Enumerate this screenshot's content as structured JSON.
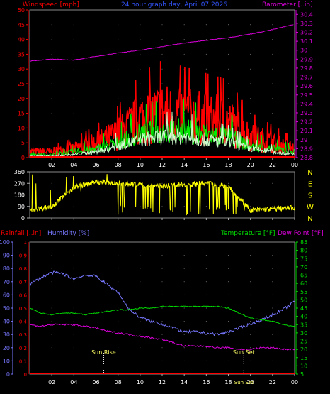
{
  "chart_data": [
    {
      "type": "line",
      "title": "24 hour graph day, April 07 2026",
      "left_label": "Windspeed [mph]",
      "right_label": "Barometer [..in]",
      "x_ticks": [
        "02",
        "04",
        "06",
        "08",
        "10",
        "12",
        "14",
        "16",
        "18",
        "20",
        "22",
        "00"
      ],
      "y_left_ticks": [
        "0",
        "5",
        "10",
        "15",
        "20",
        "25",
        "30",
        "35",
        "40",
        "45",
        "50"
      ],
      "y_left_range": [
        0,
        50
      ],
      "y_right_ticks": [
        "28.8",
        "28.9",
        "29",
        "29.1",
        "29.2",
        "29.3",
        "29.4",
        "29.5",
        "29.6",
        "29.7",
        "29.8",
        "29.9",
        "30",
        "30.1",
        "30.2",
        "30.3",
        "30.4"
      ],
      "y_right_range": [
        28.8,
        30.45
      ],
      "series": [
        {
          "color": "#dd00dd",
          "axis": "right",
          "x": [
            0,
            2,
            4,
            6,
            8,
            10,
            12,
            14,
            16,
            18,
            20,
            22,
            24
          ],
          "y": [
            29.88,
            29.9,
            29.89,
            29.93,
            29.97,
            30.0,
            30.04,
            30.08,
            30.11,
            30.14,
            30.18,
            30.23,
            30.29
          ]
        },
        {
          "color": "#ff0000",
          "axis": "left",
          "x": [
            0,
            2,
            4,
            6,
            8,
            10,
            12,
            14,
            16,
            18,
            20,
            22,
            24
          ],
          "y": [
            2,
            2,
            3,
            5,
            8,
            13,
            15,
            14,
            13,
            12,
            7,
            5,
            3
          ]
        },
        {
          "color": "#00ee00",
          "axis": "left",
          "x": [
            0,
            2,
            4,
            6,
            8,
            10,
            12,
            14,
            16,
            18,
            20,
            22,
            24
          ],
          "y": [
            1,
            1,
            2,
            3,
            5,
            8,
            9,
            9,
            8,
            7,
            4,
            3,
            2
          ]
        },
        {
          "color": "#ccffcc",
          "axis": "left",
          "x": [
            0,
            2,
            4,
            6,
            8,
            10,
            12,
            14,
            16,
            18,
            20,
            22,
            24
          ],
          "y": [
            0.5,
            0.5,
            1,
            2,
            4,
            6,
            7,
            7,
            6,
            5,
            3,
            2,
            1
          ]
        }
      ]
    },
    {
      "type": "line",
      "y_left_ticks": [
        "0",
        "90",
        "180",
        "270",
        "360"
      ],
      "y_left_range": [
        0,
        360
      ],
      "y_right_ticks": [
        "N",
        "W",
        "S",
        "E",
        "N"
      ],
      "series": [
        {
          "color": "#ffff00",
          "x": [
            0,
            2,
            4,
            6,
            8,
            10,
            12,
            14,
            16,
            18,
            20,
            22,
            24
          ],
          "y": [
            60,
            90,
            240,
            280,
            270,
            260,
            250,
            260,
            270,
            250,
            60,
            70,
            80
          ]
        }
      ]
    },
    {
      "type": "line",
      "labels": {
        "rainfall": "Rainfall [..in]",
        "humidity": "Humidity [%]",
        "temperature": "Temperature [°F]",
        "dew_point": "Dew Point [°F]"
      },
      "x_ticks": [
        "02",
        "04",
        "06",
        "08",
        "10",
        "12",
        "14",
        "16",
        "18",
        "20",
        "22",
        "00"
      ],
      "y_left_ticks": [
        "0",
        "10",
        "20",
        "30",
        "40",
        "50",
        "60",
        "70",
        "80",
        "90",
        "100"
      ],
      "y_rain_ticks": [
        "0",
        "0.1",
        "0.2",
        "0.3",
        "0.4",
        "0.5",
        "0.6",
        "0.7",
        "0.8",
        "0.9",
        "1"
      ],
      "y_right_ticks": [
        "5",
        "10",
        "15",
        "20",
        "25",
        "30",
        "35",
        "40",
        "45",
        "50",
        "55",
        "60",
        "65",
        "70",
        "75",
        "80",
        "85"
      ],
      "y_right_range": [
        5,
        85
      ],
      "annotations": [
        {
          "text": "Sun Rise",
          "hour": 6.7
        },
        {
          "text": "Sun Set",
          "hour": 19.4
        },
        {
          "text": "Sun Set",
          "hour": 19.4
        }
      ],
      "series": [
        {
          "name": "Humidity [%]",
          "color": "#7777ff",
          "axis": "left",
          "x": [
            0,
            1,
            2,
            3,
            4,
            5,
            6,
            7,
            8,
            9,
            10,
            11,
            12,
            13,
            14,
            15,
            16,
            17,
            18,
            19,
            20,
            21,
            22,
            23,
            24
          ],
          "y": [
            68,
            73,
            77,
            76,
            72,
            75,
            74,
            68,
            62,
            49,
            43,
            40,
            38,
            35,
            32,
            32,
            31,
            30,
            32,
            35,
            38,
            41,
            45,
            49,
            55
          ]
        },
        {
          "name": "Temperature [°F]",
          "color": "#00dd00",
          "axis": "right",
          "x": [
            0,
            1,
            2,
            3,
            4,
            5,
            6,
            7,
            8,
            9,
            10,
            11,
            12,
            13,
            14,
            15,
            16,
            17,
            18,
            19,
            20,
            21,
            22,
            23,
            24
          ],
          "y": [
            45,
            42,
            41,
            42,
            42,
            41,
            42,
            43,
            44,
            44,
            45,
            45,
            46,
            46,
            46,
            46,
            46,
            46,
            45,
            42,
            39,
            38,
            37,
            35,
            34
          ]
        },
        {
          "name": "Dew Point [°F]",
          "color": "#dd00dd",
          "axis": "right",
          "x": [
            0,
            1,
            2,
            3,
            4,
            5,
            6,
            7,
            8,
            9,
            10,
            11,
            12,
            13,
            14,
            15,
            16,
            17,
            18,
            19,
            20,
            21,
            22,
            23,
            24
          ],
          "y": [
            35,
            34,
            35,
            35,
            35,
            34,
            33,
            31,
            30,
            29,
            28,
            27,
            26,
            24,
            22,
            22,
            22,
            21,
            21,
            20,
            20,
            21,
            21,
            20,
            20
          ]
        },
        {
          "name": "Rainfall [..in]",
          "color": "#ff0000",
          "axis": "left",
          "x": [
            0,
            24
          ],
          "y": [
            0,
            0
          ]
        }
      ]
    }
  ]
}
